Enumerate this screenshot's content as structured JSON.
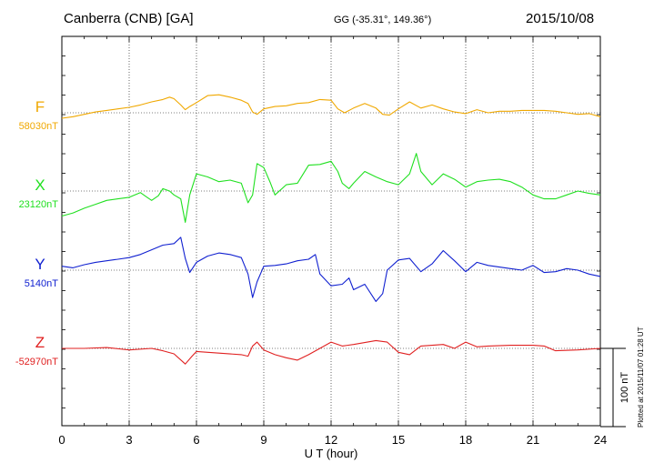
{
  "header": {
    "station": "Canberra (CNB)  [GA]",
    "coords": "GG (-35.31°, 149.36°)",
    "date": "2015/10/08"
  },
  "footer_note": "Plotted at 2015/11/07 01:28 UT",
  "chart_data": {
    "type": "line",
    "xlabel": "U T (hour)",
    "xlim": [
      0,
      24
    ],
    "xticks": [
      0,
      3,
      6,
      9,
      12,
      15,
      18,
      21,
      24
    ],
    "scale_bar_label": "100 nT",
    "grid": true,
    "series": [
      {
        "name": "F",
        "baseline_label": "58030nT",
        "color": "#f0a800",
        "points": [
          [
            0,
            -7
          ],
          [
            0.5,
            -5
          ],
          [
            1,
            -2
          ],
          [
            1.5,
            1
          ],
          [
            2,
            3
          ],
          [
            2.5,
            5
          ],
          [
            3,
            7
          ],
          [
            3.5,
            10
          ],
          [
            4,
            14
          ],
          [
            4.5,
            17
          ],
          [
            4.8,
            20
          ],
          [
            5,
            18
          ],
          [
            5.3,
            10
          ],
          [
            5.5,
            4
          ],
          [
            5.7,
            8
          ],
          [
            6,
            13
          ],
          [
            6.5,
            22
          ],
          [
            7,
            23
          ],
          [
            7.5,
            20
          ],
          [
            8,
            16
          ],
          [
            8.3,
            12
          ],
          [
            8.5,
            1
          ],
          [
            8.7,
            -2
          ],
          [
            9,
            5
          ],
          [
            9.5,
            8
          ],
          [
            10,
            9
          ],
          [
            10.5,
            12
          ],
          [
            11,
            13
          ],
          [
            11.5,
            17
          ],
          [
            12,
            16
          ],
          [
            12.3,
            5
          ],
          [
            12.6,
            0
          ],
          [
            13,
            6
          ],
          [
            13.5,
            12
          ],
          [
            14,
            6
          ],
          [
            14.3,
            -2
          ],
          [
            14.6,
            -3
          ],
          [
            15,
            5
          ],
          [
            15.5,
            14
          ],
          [
            16,
            6
          ],
          [
            16.5,
            10
          ],
          [
            17,
            5
          ],
          [
            17.5,
            1
          ],
          [
            18,
            -1
          ],
          [
            18.5,
            4
          ],
          [
            19,
            0
          ],
          [
            19.5,
            2
          ],
          [
            20,
            2
          ],
          [
            20.5,
            3
          ],
          [
            21,
            3
          ],
          [
            21.5,
            3
          ],
          [
            22,
            2
          ],
          [
            22.5,
            0
          ],
          [
            23,
            -2
          ],
          [
            23.5,
            -1
          ],
          [
            24,
            -5
          ]
        ]
      },
      {
        "name": "X",
        "baseline_label": "23120nT",
        "color": "#20e020",
        "points": [
          [
            0,
            -32
          ],
          [
            0.5,
            -28
          ],
          [
            1,
            -22
          ],
          [
            1.5,
            -17
          ],
          [
            2,
            -12
          ],
          [
            2.5,
            -10
          ],
          [
            3,
            -8
          ],
          [
            3.5,
            -2
          ],
          [
            3.8,
            -8
          ],
          [
            4,
            -12
          ],
          [
            4.3,
            -6
          ],
          [
            4.5,
            3
          ],
          [
            4.8,
            0
          ],
          [
            5,
            -5
          ],
          [
            5.3,
            -10
          ],
          [
            5.5,
            -40
          ],
          [
            5.7,
            -5
          ],
          [
            6,
            22
          ],
          [
            6.5,
            18
          ],
          [
            7,
            12
          ],
          [
            7.5,
            14
          ],
          [
            8,
            10
          ],
          [
            8.3,
            -15
          ],
          [
            8.5,
            -5
          ],
          [
            8.7,
            35
          ],
          [
            9,
            30
          ],
          [
            9.3,
            10
          ],
          [
            9.5,
            -5
          ],
          [
            10,
            8
          ],
          [
            10.5,
            10
          ],
          [
            11,
            33
          ],
          [
            11.5,
            34
          ],
          [
            12,
            38
          ],
          [
            12.3,
            25
          ],
          [
            12.5,
            10
          ],
          [
            12.8,
            3
          ],
          [
            13,
            10
          ],
          [
            13.5,
            25
          ],
          [
            14,
            18
          ],
          [
            14.5,
            12
          ],
          [
            15,
            8
          ],
          [
            15.5,
            22
          ],
          [
            15.8,
            48
          ],
          [
            16,
            25
          ],
          [
            16.5,
            8
          ],
          [
            17,
            22
          ],
          [
            17.5,
            15
          ],
          [
            18,
            5
          ],
          [
            18.5,
            12
          ],
          [
            19,
            14
          ],
          [
            19.5,
            15
          ],
          [
            20,
            12
          ],
          [
            20.5,
            5
          ],
          [
            21,
            -5
          ],
          [
            21.5,
            -10
          ],
          [
            22,
            -10
          ],
          [
            22.5,
            -5
          ],
          [
            23,
            0
          ],
          [
            23.5,
            -3
          ],
          [
            24,
            -5
          ]
        ]
      },
      {
        "name": "Y",
        "baseline_label": "5140nT",
        "color": "#1020d0",
        "points": [
          [
            0,
            5
          ],
          [
            0.5,
            3
          ],
          [
            1,
            7
          ],
          [
            1.5,
            10
          ],
          [
            2,
            12
          ],
          [
            2.5,
            14
          ],
          [
            3,
            16
          ],
          [
            3.5,
            20
          ],
          [
            4,
            26
          ],
          [
            4.5,
            32
          ],
          [
            5,
            34
          ],
          [
            5.3,
            42
          ],
          [
            5.5,
            15
          ],
          [
            5.7,
            -3
          ],
          [
            6,
            10
          ],
          [
            6.5,
            18
          ],
          [
            7,
            22
          ],
          [
            7.5,
            20
          ],
          [
            8,
            16
          ],
          [
            8.3,
            -5
          ],
          [
            8.5,
            -35
          ],
          [
            8.7,
            -15
          ],
          [
            9,
            5
          ],
          [
            9.5,
            6
          ],
          [
            10,
            8
          ],
          [
            10.5,
            12
          ],
          [
            11,
            14
          ],
          [
            11.3,
            20
          ],
          [
            11.5,
            -5
          ],
          [
            12,
            -20
          ],
          [
            12.5,
            -18
          ],
          [
            12.8,
            -10
          ],
          [
            13,
            -25
          ],
          [
            13.5,
            -18
          ],
          [
            14,
            -40
          ],
          [
            14.3,
            -30
          ],
          [
            14.5,
            0
          ],
          [
            15,
            13
          ],
          [
            15.5,
            15
          ],
          [
            16,
            -2
          ],
          [
            16.5,
            8
          ],
          [
            17,
            25
          ],
          [
            17.5,
            12
          ],
          [
            18,
            -2
          ],
          [
            18.5,
            10
          ],
          [
            19,
            6
          ],
          [
            19.5,
            4
          ],
          [
            20,
            2
          ],
          [
            20.5,
            0
          ],
          [
            21,
            6
          ],
          [
            21.5,
            -3
          ],
          [
            22,
            -2
          ],
          [
            22.5,
            2
          ],
          [
            23,
            0
          ],
          [
            23.5,
            -5
          ],
          [
            24,
            -8
          ]
        ]
      },
      {
        "name": "Z",
        "baseline_label": "-52970nT",
        "color": "#e02020",
        "points": [
          [
            0,
            0
          ],
          [
            1,
            0
          ],
          [
            2,
            1
          ],
          [
            3,
            -2
          ],
          [
            4,
            0
          ],
          [
            4.5,
            -3
          ],
          [
            5,
            -7
          ],
          [
            5.5,
            -20
          ],
          [
            5.8,
            -10
          ],
          [
            6,
            -4
          ],
          [
            7,
            -6
          ],
          [
            8,
            -8
          ],
          [
            8.3,
            -10
          ],
          [
            8.5,
            3
          ],
          [
            8.7,
            8
          ],
          [
            9,
            -2
          ],
          [
            9.5,
            -8
          ],
          [
            10,
            -12
          ],
          [
            10.5,
            -15
          ],
          [
            11,
            -8
          ],
          [
            11.5,
            0
          ],
          [
            12,
            8
          ],
          [
            12.5,
            3
          ],
          [
            13,
            5
          ],
          [
            14,
            10
          ],
          [
            14.5,
            8
          ],
          [
            15,
            -5
          ],
          [
            15.5,
            -8
          ],
          [
            16,
            3
          ],
          [
            17,
            5
          ],
          [
            17.5,
            0
          ],
          [
            18,
            8
          ],
          [
            18.5,
            2
          ],
          [
            19,
            3
          ],
          [
            20,
            4
          ],
          [
            21,
            4
          ],
          [
            21.5,
            3
          ],
          [
            22,
            -3
          ],
          [
            23,
            -2
          ],
          [
            24,
            0
          ]
        ]
      }
    ]
  }
}
